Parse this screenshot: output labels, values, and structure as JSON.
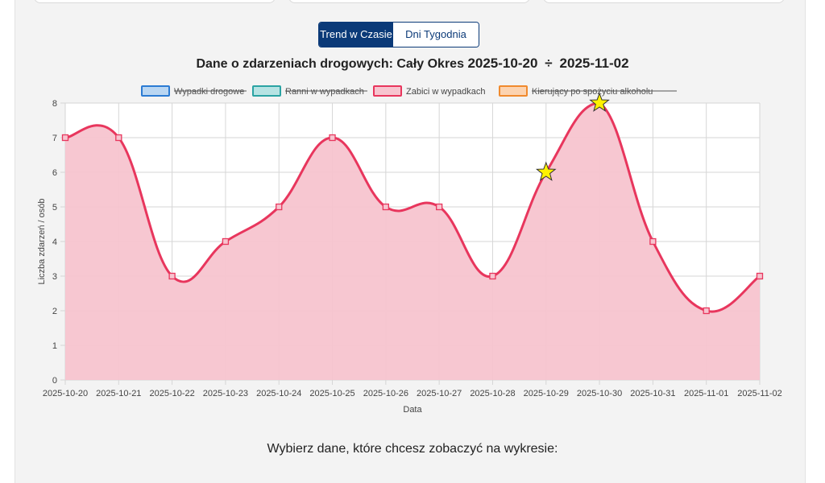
{
  "tabs": [
    {
      "label": "Trend w Czasie",
      "active": true
    },
    {
      "label": "Dni Tygodnia",
      "active": false
    }
  ],
  "chart_title": {
    "prefix": "Dane o zdarzeniach drogowych: Cały Okres",
    "start": "2025-10-20",
    "separator": "÷",
    "end": "2025-11-02"
  },
  "footer_text": "Wybierz dane, które chcesz zobaczyć na wykresie:",
  "chart_data": {
    "type": "area",
    "categories": [
      "2025-10-20",
      "2025-10-21",
      "2025-10-22",
      "2025-10-23",
      "2025-10-24",
      "2025-10-25",
      "2025-10-26",
      "2025-10-27",
      "2025-10-28",
      "2025-10-29",
      "2025-10-30",
      "2025-10-31",
      "2025-11-01",
      "2025-11-02"
    ],
    "xlabel": "Data",
    "ylabel": "Liczba zdarzeń / osób",
    "ylim": [
      0,
      8
    ],
    "yticks": [
      "0",
      "1",
      "2",
      "3",
      "4",
      "5",
      "6",
      "7",
      "8"
    ],
    "grid": true,
    "legend_position": "top",
    "legend": [
      {
        "label": "Wypadki drogowe",
        "hidden": true,
        "fill": "#b9d6f2",
        "stroke": "#2b7bd3"
      },
      {
        "label": "Ranni w wypadkach",
        "hidden": true,
        "fill": "#b6e3e3",
        "stroke": "#2aa3a3"
      },
      {
        "label": "Zabici w wypadkach",
        "hidden": false,
        "fill": "#f7c4cf",
        "stroke": "#e8365d"
      },
      {
        "label": "Kierujący po spożyciu alkoholu",
        "hidden": true,
        "fill": "#fcd3b0",
        "stroke": "#f08a2e"
      }
    ],
    "series": [
      {
        "name": "Zabici w wypadkach",
        "values": [
          7,
          7,
          3,
          4,
          5,
          7,
          5,
          5,
          3,
          6,
          8,
          4,
          2,
          3
        ],
        "highlighted_points": [
          9,
          10
        ],
        "color": "#e8365d",
        "fill": "#f7c4cf"
      }
    ]
  },
  "colors": {
    "accent": "#0b3a78",
    "star": "#fff200"
  }
}
